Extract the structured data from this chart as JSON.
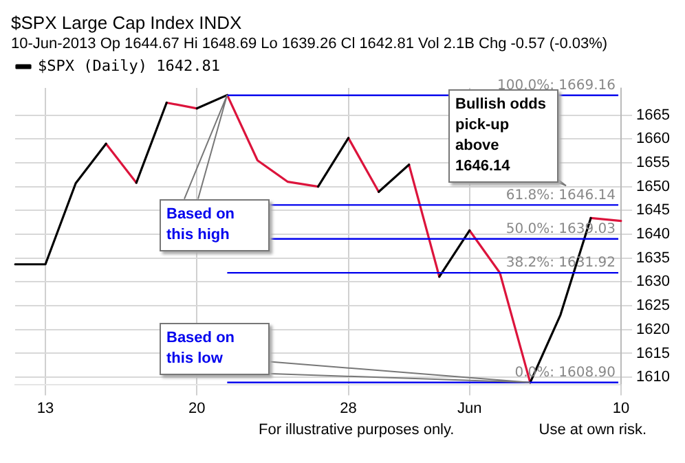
{
  "chart_data": {
    "type": "line",
    "title": "$SPX Large Cap Index INDX",
    "subtitle": "10-Jun-2013  Op 1644.67  Hi 1648.69  Lo 1639.26  Cl 1642.81  Vol 2.1B  Chg -0.57 (-0.03%)",
    "categories": [
      null,
      "13",
      null,
      null,
      null,
      null,
      "20",
      null,
      null,
      null,
      null,
      "28",
      null,
      null,
      null,
      "Jun",
      null,
      null,
      null,
      null,
      "10"
    ],
    "series": [
      {
        "name": "$SPX (Daily) 1642.81",
        "color": "#000000",
        "values": [
          1633.7,
          1633.7,
          1650.7,
          1659.0,
          null,
          null,
          null,
          null,
          null,
          null,
          null,
          null,
          null,
          null,
          null,
          null,
          null,
          null,
          null,
          null,
          null
        ]
      },
      {
        "color": "#000000",
        "values": [
          null,
          null,
          null,
          null,
          1650.8,
          1667.6,
          null,
          null,
          null,
          null,
          null,
          null,
          null,
          null,
          null,
          null,
          null,
          null,
          null,
          null,
          null
        ]
      },
      {
        "color": "#000000",
        "values": [
          null,
          null,
          null,
          null,
          null,
          null,
          1666.4,
          1669.2,
          null,
          null,
          null,
          null,
          null,
          null,
          null,
          null,
          null,
          null,
          null,
          null,
          null
        ]
      },
      {
        "color": "#000000",
        "values": [
          null,
          null,
          null,
          null,
          null,
          null,
          null,
          null,
          null,
          null,
          1650.0,
          1660.2,
          null,
          null,
          null,
          null,
          null,
          null,
          null,
          null,
          null
        ]
      },
      {
        "color": "#000000",
        "values": [
          null,
          null,
          null,
          null,
          null,
          null,
          null,
          null,
          null,
          null,
          null,
          null,
          1648.9,
          1654.6,
          null,
          null,
          null,
          null,
          null,
          null,
          null
        ]
      },
      {
        "color": "#000000",
        "values": [
          null,
          null,
          null,
          null,
          null,
          null,
          null,
          null,
          null,
          null,
          null,
          null,
          null,
          null,
          1631.1,
          1640.8,
          null,
          null,
          null,
          null,
          null
        ]
      },
      {
        "color": "#000000",
        "values": [
          null,
          null,
          null,
          null,
          null,
          null,
          null,
          null,
          null,
          null,
          null,
          null,
          null,
          null,
          null,
          null,
          null,
          1608.9,
          1623.1,
          1643.4,
          null
        ]
      },
      {
        "color": "#dc143c",
        "values": [
          null,
          null,
          null,
          1659.0,
          1650.8,
          null,
          null,
          null,
          null,
          null,
          null,
          null,
          null,
          null,
          null,
          null,
          null,
          null,
          null,
          null,
          null
        ]
      },
      {
        "color": "#dc143c",
        "values": [
          null,
          null,
          null,
          null,
          null,
          1667.6,
          1666.4,
          null,
          null,
          null,
          null,
          null,
          null,
          null,
          null,
          null,
          null,
          null,
          null,
          null,
          null
        ]
      },
      {
        "color": "#dc143c",
        "values": [
          null,
          null,
          null,
          null,
          null,
          null,
          null,
          1669.2,
          1655.5,
          1651.0,
          1650.0,
          null,
          null,
          null,
          null,
          null,
          null,
          null,
          null,
          null,
          null
        ]
      },
      {
        "color": "#dc143c",
        "values": [
          null,
          null,
          null,
          null,
          null,
          null,
          null,
          null,
          null,
          null,
          null,
          1660.2,
          1648.9,
          null,
          null,
          null,
          null,
          null,
          null,
          null,
          null
        ]
      },
      {
        "color": "#dc143c",
        "values": [
          null,
          null,
          null,
          null,
          null,
          null,
          null,
          null,
          null,
          null,
          null,
          null,
          null,
          1654.6,
          1631.1,
          null,
          null,
          null,
          null,
          null,
          null
        ]
      },
      {
        "color": "#dc143c",
        "values": [
          null,
          null,
          null,
          null,
          null,
          null,
          null,
          null,
          null,
          null,
          null,
          null,
          null,
          null,
          null,
          1640.8,
          1631.9,
          1608.9,
          null,
          null,
          null
        ]
      },
      {
        "color": "#dc143c",
        "values": [
          null,
          null,
          null,
          null,
          null,
          null,
          null,
          null,
          null,
          null,
          null,
          null,
          null,
          null,
          null,
          null,
          null,
          null,
          null,
          1643.4,
          1642.8
        ]
      }
    ],
    "ylim": [
      1608.5,
      1670.7
    ],
    "yticks": [
      1610,
      1615,
      1620,
      1625,
      1630,
      1635,
      1640,
      1645,
      1650,
      1655,
      1660,
      1665
    ],
    "ref_lines": [
      {
        "axis": "y",
        "value": 1669.16,
        "label": "100.0%: 1669.16",
        "color": "#0000ee"
      },
      {
        "axis": "y",
        "value": 1646.14,
        "label": "61.8%: 1646.14",
        "color": "#0000ee"
      },
      {
        "axis": "y",
        "value": 1639.03,
        "label": "50.0%: 1639.03",
        "color": "#0000ee"
      },
      {
        "axis": "y",
        "value": 1631.92,
        "label": "38.2%: 1631.92",
        "color": "#0000ee"
      },
      {
        "axis": "y",
        "value": 1608.9,
        "label": "0.0%: 1608.90",
        "color": "#0000ee"
      }
    ],
    "annotations": [
      "Based on this high",
      "Based on this low",
      "Bullish odds pick-up above 1646.14",
      "For illustrative purposes only.",
      "Use at own risk."
    ],
    "grid": true,
    "legend": "top left",
    "marker": "none",
    "line_style": "solid"
  }
}
